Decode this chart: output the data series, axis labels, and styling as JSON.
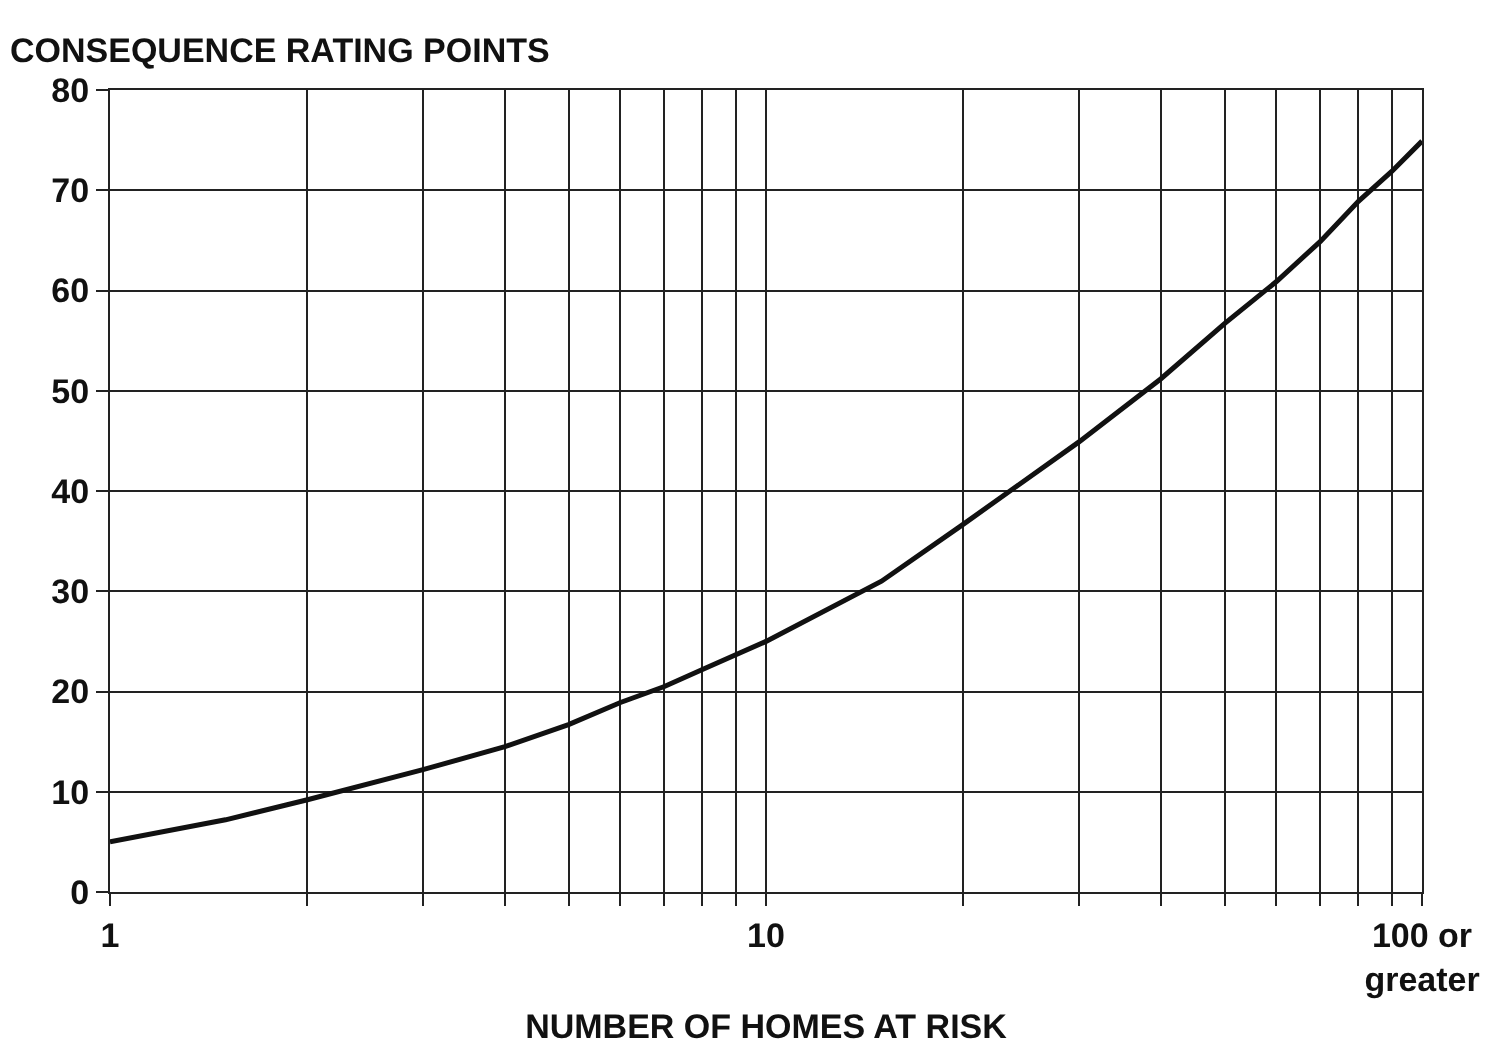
{
  "chart_data": {
    "type": "line",
    "ylabel": "CONSEQUENCE RATING POINTS",
    "xlabel": "NUMBER OF HOMES AT RISK",
    "log": "x",
    "grid": true,
    "marker": "none",
    "line_style": "solid",
    "x": [
      1,
      1.5,
      2,
      3,
      4,
      5,
      6,
      7,
      8,
      10,
      15,
      20,
      30,
      40,
      50,
      60,
      70,
      80,
      90,
      100
    ],
    "series": [
      {
        "color": "#111111",
        "values": [
          5.0,
          7.2,
          9.2,
          12.2,
          14.5,
          16.7,
          18.9,
          20.5,
          22.2,
          25.0,
          31.0,
          36.7,
          44.9,
          51.2,
          56.7,
          60.9,
          64.9,
          68.9,
          71.9,
          74.9
        ]
      }
    ],
    "xlim": [
      1,
      100
    ],
    "ylim": [
      0,
      80
    ],
    "xticks": [
      1,
      {
        "value": 2,
        "label": null
      },
      {
        "value": 3,
        "label": null
      },
      {
        "value": 4,
        "label": null
      },
      {
        "value": 5,
        "label": null
      },
      {
        "value": 6,
        "label": null
      },
      {
        "value": 7,
        "label": null
      },
      {
        "value": 8,
        "label": null
      },
      {
        "value": 9,
        "label": null
      },
      10,
      {
        "value": 20,
        "label": null
      },
      {
        "value": 30,
        "label": null
      },
      {
        "value": 40,
        "label": null
      },
      {
        "value": 50,
        "label": null
      },
      {
        "value": 60,
        "label": null
      },
      {
        "value": 70,
        "label": null
      },
      {
        "value": 80,
        "label": null
      },
      {
        "value": 90,
        "label": null
      },
      {
        "value": 100,
        "label": "100 or\ngreater"
      }
    ],
    "yticks": [
      0,
      10,
      20,
      30,
      40,
      50,
      60,
      70,
      80
    ]
  }
}
